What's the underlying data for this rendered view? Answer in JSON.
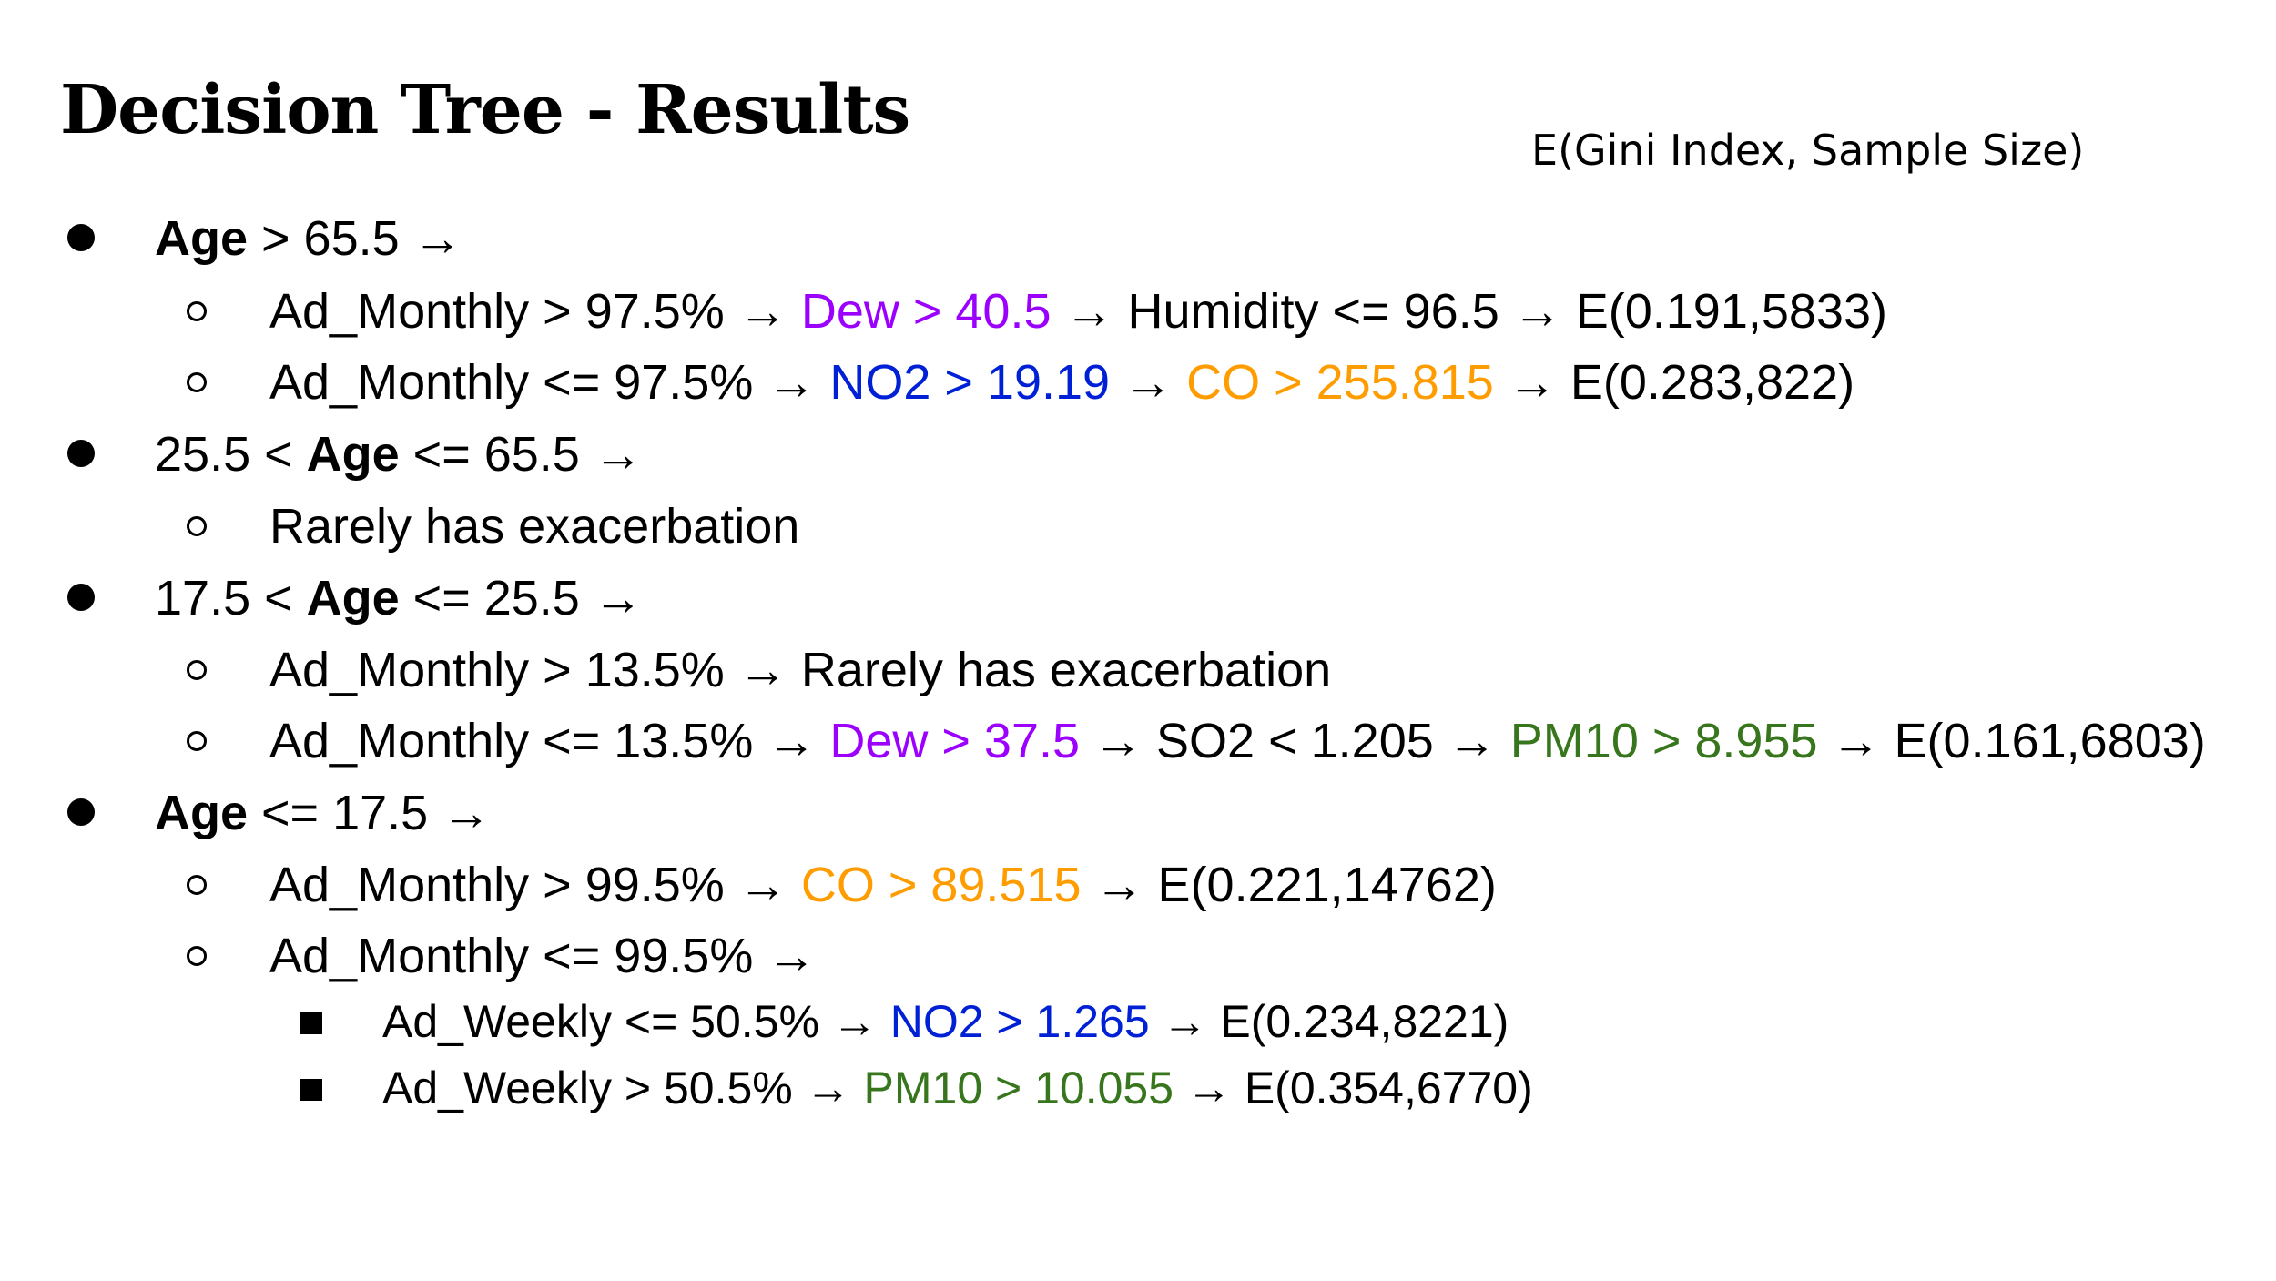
{
  "title": "Decision Tree - Results",
  "legend_note": "E(Gini Index, Sample Size)",
  "colors": {
    "purple": "#9b00ff",
    "blue": "#0020d6",
    "orange": "#ff9c00",
    "green": "#38761d"
  },
  "items": {
    "age_gt_65": {
      "age": "Age",
      "rest": " > 65.5 →",
      "sub1": {
        "a": "Ad_Monthly > 97.5% → ",
        "b": "Dew > 40.5",
        "c": " → Humidity <= 96.5 → E(0.191,5833)"
      },
      "sub2": {
        "a": "Ad_Monthly <= 97.5% → ",
        "b": "NO2 > 19.19",
        "c": " → ",
        "d": "CO > 255.815",
        "e": " → E(0.283,822)"
      }
    },
    "age_25_65": {
      "pre": "25.5 < ",
      "age": "Age",
      "rest": " <= 65.5 →",
      "sub1": "Rarely has exacerbation"
    },
    "age_17_25": {
      "pre": "17.5 < ",
      "age": "Age",
      "rest": " <= 25.5 →",
      "sub1": "Ad_Monthly > 13.5% → Rarely has exacerbation",
      "sub2": {
        "a": "Ad_Monthly <= 13.5% → ",
        "b": "Dew > 37.5",
        "c": " → SO2 < 1.205 → ",
        "d": "PM10 > 8.955",
        "e": " → E(0.161,6803)"
      }
    },
    "age_le_17": {
      "age": "Age",
      "rest": " <= 17.5 →",
      "sub1": {
        "a": "Ad_Monthly > 99.5% → ",
        "b": "CO > 89.515",
        "c": " → E(0.221,14762)"
      },
      "sub2": "Ad_Monthly <= 99.5% →",
      "subsub1": {
        "a": "Ad_Weekly <= 50.5% → ",
        "b": "NO2 > 1.265",
        "c": " → E(0.234,8221)"
      },
      "subsub2": {
        "a": "Ad_Weekly > 50.5% → ",
        "b": "PM10 > 10.055",
        "c": " → E(0.354,6770)"
      }
    }
  }
}
